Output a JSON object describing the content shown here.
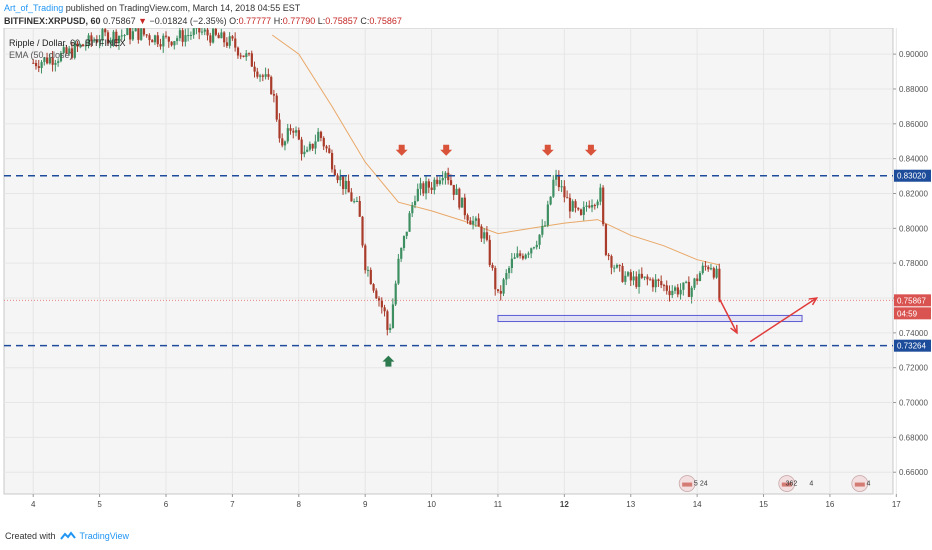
{
  "header": {
    "author": "Art_of_Trading",
    "published_text": "published on TradingView.com, March 14, 2018 04:55 EST",
    "symbol": "BITFINEX:XRPUSD, 60",
    "change_arrow": "▼",
    "change": "−0.01824 (−2.35%)",
    "last": "0.75867",
    "o_label": "O:",
    "o": "0.77777",
    "h_label": "H:",
    "h": "0.77790",
    "l_label": "L:",
    "l": "0.75857",
    "c_label": "C:",
    "c": "0.75867"
  },
  "legend": {
    "line1": "Ripple / Dollar, 60, BITFINEX",
    "line2": "EMA (50, close)"
  },
  "footer": {
    "created_with": "Created with",
    "brand": "TradingView"
  },
  "colors": {
    "up": "#3d8f62",
    "down": "#a93b2b",
    "ema": "#e9a868",
    "level": "#1d4c9a",
    "red_marker": "#d9533b",
    "green_marker": "#2d7a4f",
    "arrow": "#e03a3a",
    "price_label": "#d95350",
    "last_line": "#e57373",
    "zone": "#5b5bd6"
  },
  "chart_data": {
    "type": "candlestick",
    "symbol": "BITFINEX:XRPUSD",
    "timeframe": "60",
    "title": "Ripple / Dollar, 60, BITFINEX",
    "indicator": "EMA (50, close)",
    "x_ticks": [
      "4",
      "5",
      "6",
      "7",
      "8",
      "9",
      "10",
      "11",
      "12",
      "13",
      "14",
      "15",
      "16",
      "17"
    ],
    "y_ticks": [
      "0.90000",
      "0.88000",
      "0.86000",
      "0.84000",
      "0.82000",
      "0.80000",
      "0.78000",
      "0.76000",
      "0.74000",
      "0.72000",
      "0.70000",
      "0.68000",
      "0.66000"
    ],
    "ylim": [
      0.6475,
      0.915
    ],
    "price_labels": {
      "resistance": "0.83020",
      "last": "0.75867",
      "countdown": "04:59",
      "support": "0.73264"
    },
    "levels": [
      0.8302,
      0.73264
    ],
    "last_price": 0.75867,
    "zone": {
      "x_start": 11.0,
      "x_end": 15.58,
      "y_low": 0.7465,
      "y_high": 0.75
    },
    "red_markers_x": [
      9.55,
      10.22,
      11.75,
      12.4
    ],
    "green_marker_x": 9.35,
    "projection": {
      "down": {
        "from": [
          14.33,
          0.76
        ],
        "to": [
          14.6,
          0.74
        ]
      },
      "up": {
        "from": [
          14.8,
          0.735
        ],
        "to": [
          15.8,
          0.76
        ]
      }
    },
    "event_labels": [
      "5",
      "24",
      "362",
      "4",
      "4"
    ],
    "anchors_x": [
      4.0,
      4.5,
      5.0,
      5.6,
      6.0,
      6.5,
      7.0,
      7.3,
      7.6,
      7.75,
      7.9,
      8.1,
      8.3,
      8.6,
      8.9,
      9.0,
      9.15,
      9.3,
      9.35,
      9.5,
      9.75,
      10.0,
      10.2,
      10.3,
      10.5,
      10.8,
      11.0,
      11.2,
      11.5,
      11.7,
      11.85,
      12.05,
      12.25,
      12.35,
      12.55,
      12.6,
      12.8,
      13.0,
      13.3,
      13.6,
      13.9,
      14.05,
      14.2,
      14.3,
      14.33
    ],
    "anchors_close": [
      0.895,
      0.9,
      0.91,
      0.912,
      0.908,
      0.913,
      0.906,
      0.895,
      0.88,
      0.845,
      0.86,
      0.84,
      0.855,
      0.83,
      0.81,
      0.78,
      0.765,
      0.75,
      0.738,
      0.78,
      0.82,
      0.825,
      0.835,
      0.825,
      0.81,
      0.795,
      0.76,
      0.78,
      0.79,
      0.8,
      0.83,
      0.815,
      0.805,
      0.815,
      0.82,
      0.79,
      0.775,
      0.77,
      0.77,
      0.765,
      0.765,
      0.775,
      0.78,
      0.772,
      0.7587
    ],
    "ema_x": [
      7.6,
      8.0,
      8.5,
      9.0,
      9.5,
      10.0,
      10.5,
      11.0,
      11.5,
      12.0,
      12.5,
      13.0,
      13.5,
      14.0,
      14.33
    ],
    "ema_y": [
      0.911,
      0.9,
      0.87,
      0.838,
      0.815,
      0.81,
      0.804,
      0.797,
      0.8,
      0.803,
      0.805,
      0.796,
      0.79,
      0.782,
      0.779
    ]
  }
}
